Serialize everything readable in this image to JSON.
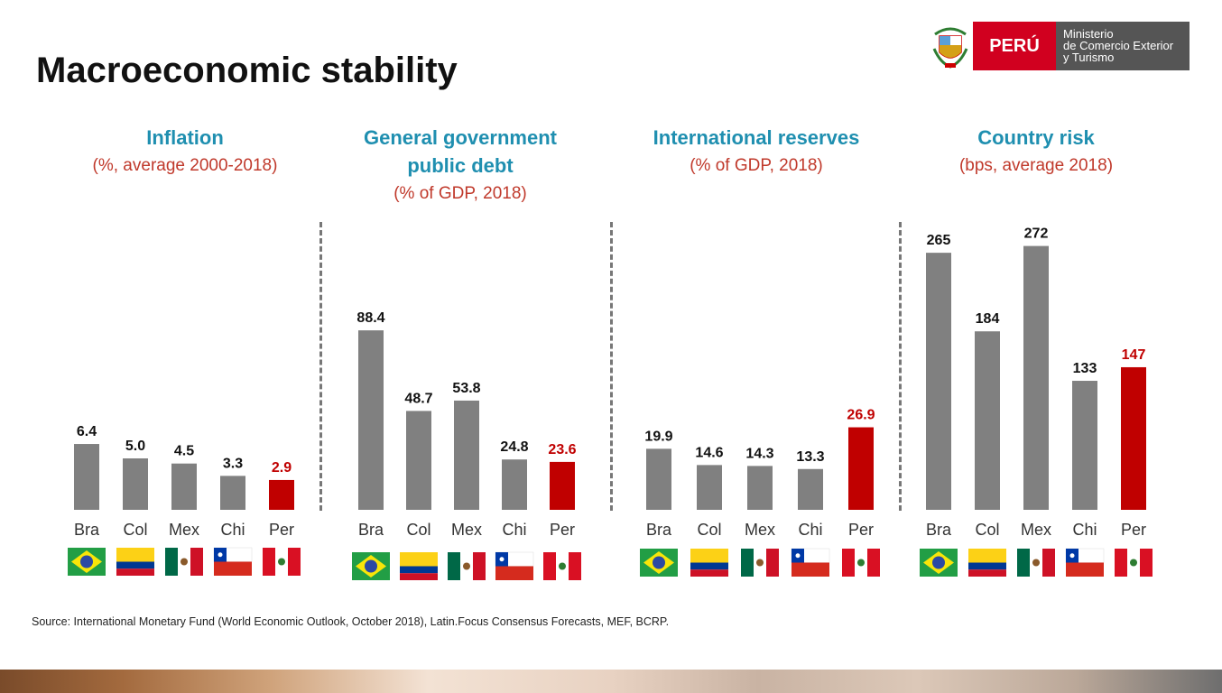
{
  "title": "Macroeconomic stability",
  "logo": {
    "country": "PERÚ",
    "ministry_line1": "Ministerio",
    "ministry_line2": "de Comercio Exterior",
    "ministry_line3": "y Turismo"
  },
  "source": "Source: International Monetary Fund (World Economic Outlook, October 2018), Latin.Focus Consensus Forecasts, MEF, BCRP.",
  "colors": {
    "bar_gray": "#808080",
    "bar_red": "#c00000",
    "heading_blue": "#1f8fb0",
    "subheading_red": "#c0392b"
  },
  "chart_data": [
    {
      "type": "bar",
      "title": "Inflation",
      "subtitle": "(%, average 2000-2018)",
      "categories": [
        "Bra",
        "Col",
        "Mex",
        "Chi",
        "Per"
      ],
      "values": [
        6.4,
        5.0,
        4.5,
        3.3,
        2.9
      ],
      "labels": [
        "6.4",
        "5.0",
        "4.5",
        "3.3",
        "2.9"
      ],
      "highlight": "Per"
    },
    {
      "type": "bar",
      "title": "General government public debt",
      "subtitle": "(% of GDP, 2018)",
      "categories": [
        "Bra",
        "Col",
        "Mex",
        "Chi",
        "Per"
      ],
      "values": [
        88.4,
        48.7,
        53.8,
        24.8,
        23.6
      ],
      "labels": [
        "88.4",
        "48.7",
        "53.8",
        "24.8",
        "23.6"
      ],
      "highlight": "Per"
    },
    {
      "type": "bar",
      "title": "International reserves",
      "subtitle": "(% of GDP, 2018)",
      "categories": [
        "Bra",
        "Col",
        "Mex",
        "Chi",
        "Per"
      ],
      "values": [
        19.9,
        14.6,
        14.3,
        13.3,
        26.9
      ],
      "labels": [
        "19.9",
        "14.6",
        "14.3",
        "13.3",
        "26.9"
      ],
      "highlight": "Per"
    },
    {
      "type": "bar",
      "title": "Country risk",
      "subtitle": "(bps, average 2018)",
      "categories": [
        "Bra",
        "Col",
        "Mex",
        "Chi",
        "Per"
      ],
      "values": [
        265,
        184,
        272,
        133,
        147
      ],
      "labels": [
        "265",
        "184",
        "272",
        "133",
        "147"
      ],
      "highlight": "Per"
    }
  ],
  "flags": [
    "brazil-flag",
    "colombia-flag",
    "mexico-flag",
    "chile-flag",
    "peru-flag"
  ]
}
